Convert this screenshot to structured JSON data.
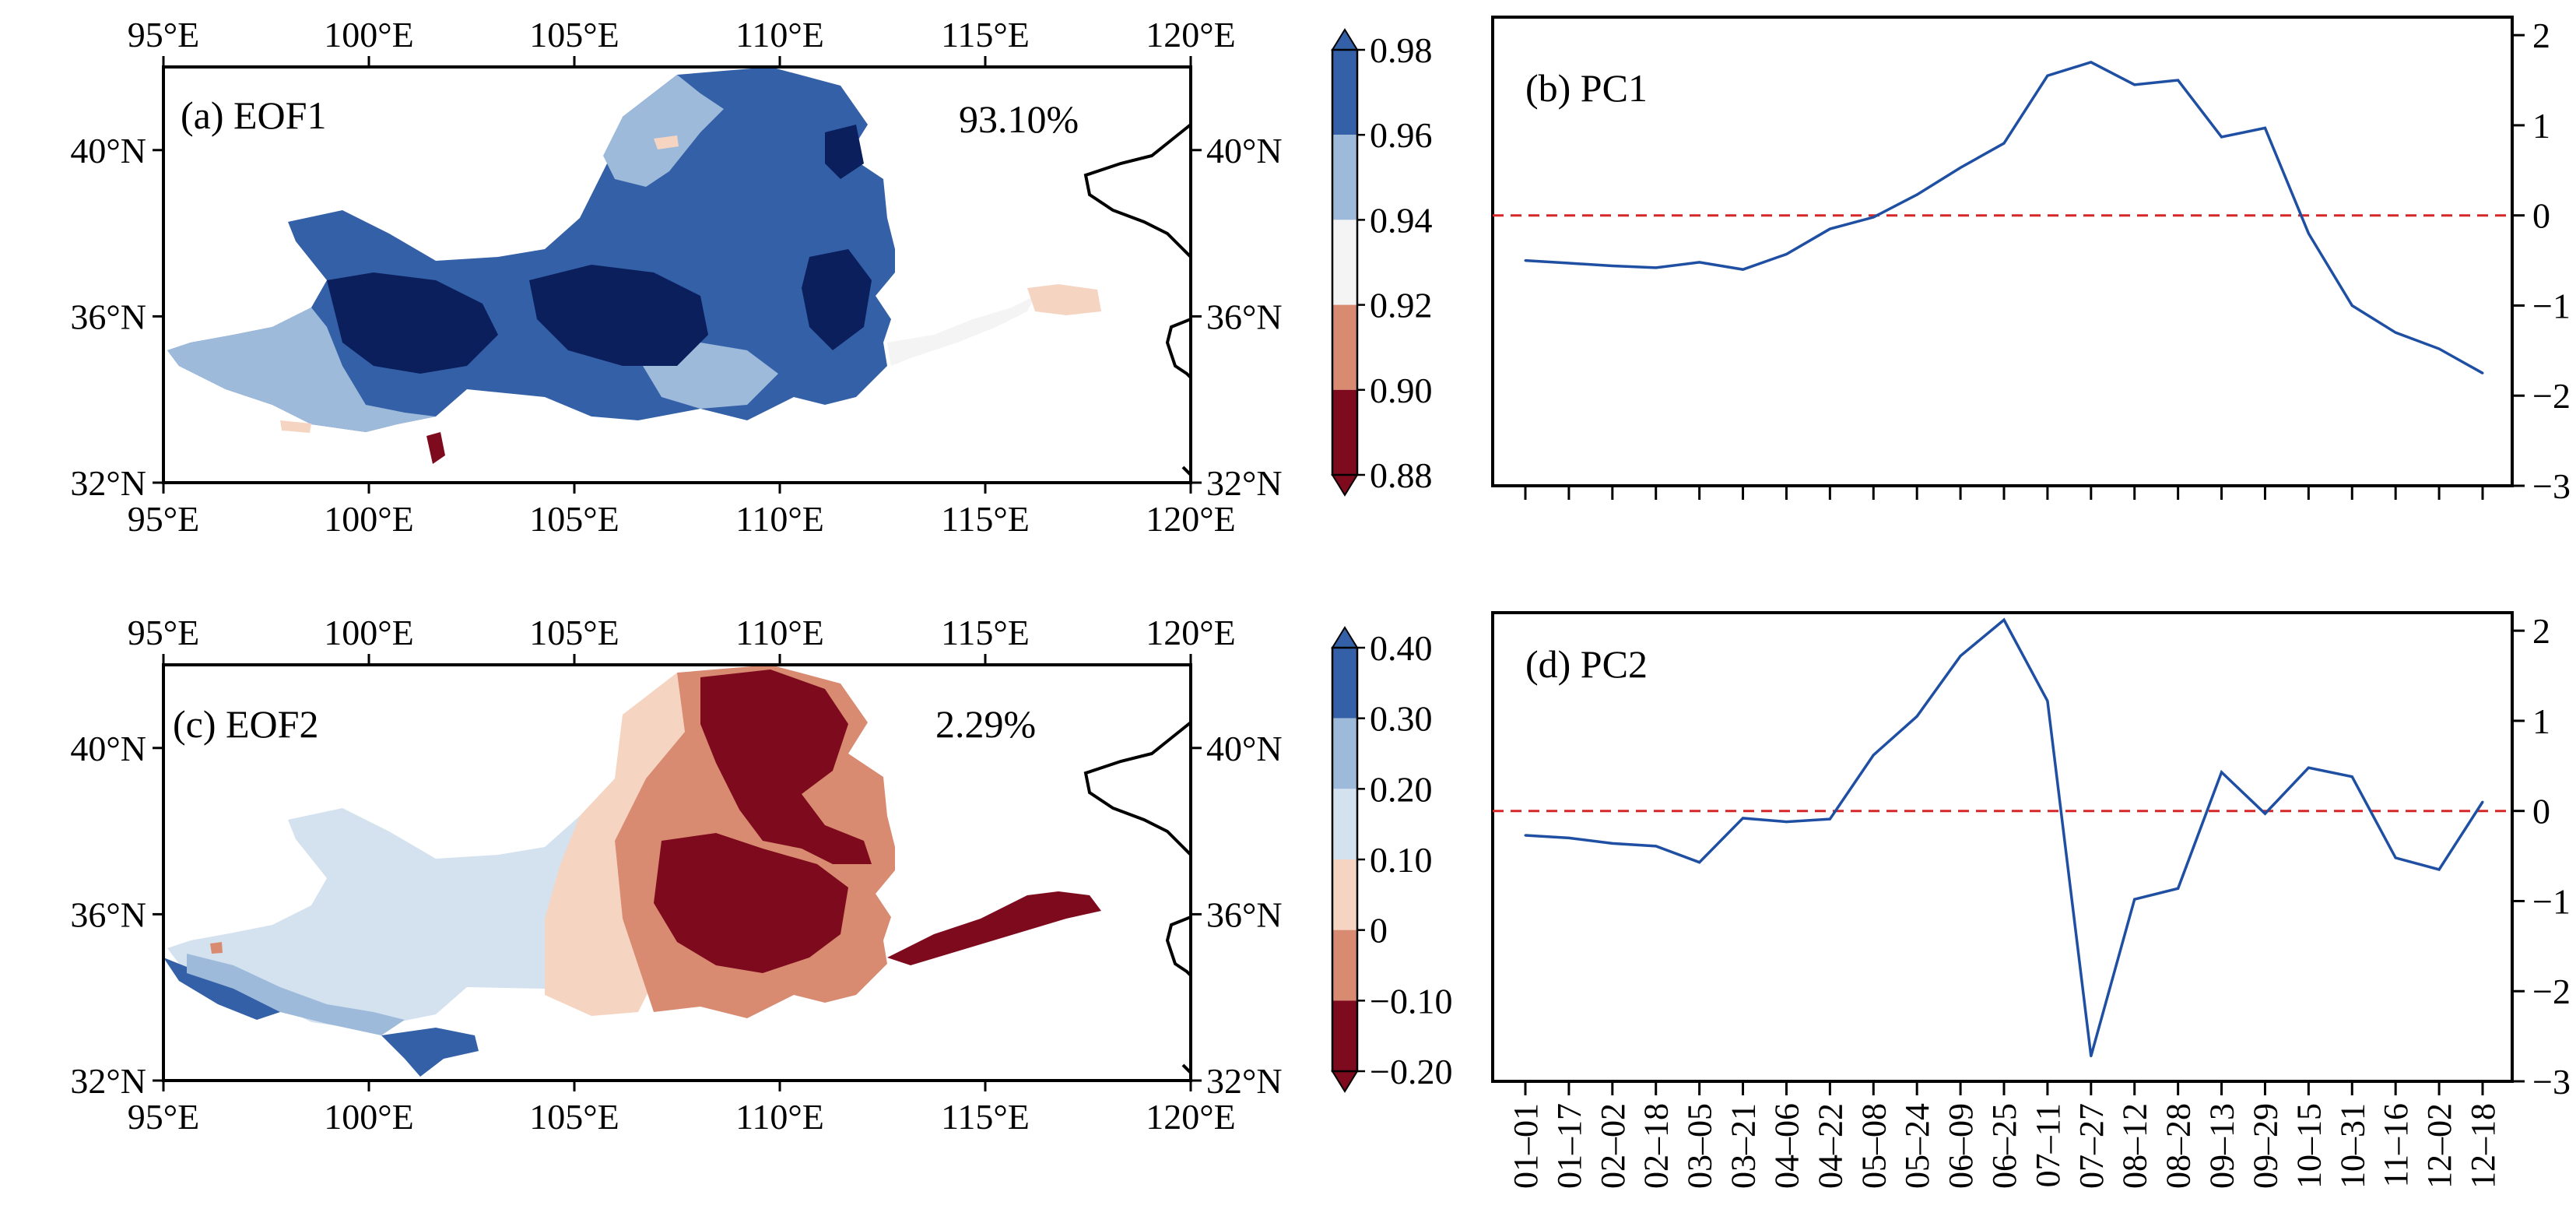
{
  "colors": {
    "blue_dark": "#0a1f5c",
    "blue_mid": "#3460a8",
    "blue_light": "#9dbadb",
    "blue_pale": "#d4e2f0",
    "neutral": "#f4f4f4",
    "salmon_light": "#f6d4c2",
    "salmon": "#d98b72",
    "red_mid": "#c75a48",
    "red_dark": "#7e0a1d",
    "line_pc": "#1f4fa3",
    "zero_line": "#d62728",
    "coast": "#000000"
  },
  "map_axes": {
    "lon_ticks": [
      "95°E",
      "100°E",
      "105°E",
      "110°E",
      "115°E",
      "120°E"
    ],
    "lat_ticks": [
      "40°N",
      "36°N",
      "32°N"
    ]
  },
  "panels": {
    "a": {
      "label": "(a) EOF1",
      "percent": "93.10%"
    },
    "b": {
      "label": "(b) PC1"
    },
    "c": {
      "label": "(c) EOF2",
      "percent": "2.29%"
    },
    "d": {
      "label": "(d) PC2"
    }
  },
  "colorbars": {
    "eof1": {
      "labels": [
        "0.98",
        "0.96",
        "0.94",
        "0.92",
        "0.90",
        "0.88"
      ]
    },
    "eof2": {
      "labels": [
        "0.40",
        "0.30",
        "0.20",
        "0.10",
        "0",
        "−0.10",
        "−0.20"
      ]
    }
  },
  "chart_data": [
    {
      "type": "heatmap",
      "panel": "(a) EOF1",
      "annotation": "93.10%",
      "x_range": [
        95,
        120
      ],
      "y_range": [
        32,
        42
      ],
      "colorbar_levels": [
        0.88,
        0.9,
        0.92,
        0.94,
        0.96,
        0.98
      ]
    },
    {
      "type": "line",
      "panel": "(b) PC1",
      "x": [
        "01–01",
        "01–17",
        "02–02",
        "02–18",
        "03–05",
        "03–21",
        "04–06",
        "04–22",
        "05–08",
        "05–24",
        "06–09",
        "06–25",
        "07–11",
        "07–27",
        "08–12",
        "08–28",
        "09–13",
        "09–29",
        "10–15",
        "10–31",
        "11–16",
        "12–02",
        "12–18"
      ],
      "series": [
        {
          "values": [
            -0.5,
            -0.53,
            -0.56,
            -0.58,
            -0.52,
            -0.6,
            -0.43,
            -0.15,
            -0.02,
            0.23,
            0.53,
            0.8,
            1.55,
            1.7,
            1.45,
            1.5,
            0.87,
            0.97,
            -0.2,
            -1.0,
            -1.3,
            -1.48,
            -1.75
          ]
        }
      ],
      "ylim": [
        -3,
        2.2
      ],
      "yticks": [
        -3,
        -2,
        -1,
        0,
        1,
        2
      ],
      "zero_line": 0
    },
    {
      "type": "heatmap",
      "panel": "(c) EOF2",
      "annotation": "2.29%",
      "x_range": [
        95,
        120
      ],
      "y_range": [
        32,
        42
      ],
      "colorbar_levels": [
        -0.2,
        -0.1,
        0,
        0.1,
        0.2,
        0.3,
        0.4
      ]
    },
    {
      "type": "line",
      "panel": "(d) PC2",
      "x": [
        "01–01",
        "01–17",
        "02–02",
        "02–18",
        "03–05",
        "03–21",
        "04–06",
        "04–22",
        "05–08",
        "05–24",
        "06–09",
        "06–25",
        "07–11",
        "07–27",
        "08–12",
        "08–28",
        "09–13",
        "09–29",
        "10–15",
        "10–31",
        "11–16",
        "12–02",
        "12–18"
      ],
      "series": [
        {
          "values": [
            -0.27,
            -0.3,
            -0.36,
            -0.39,
            -0.57,
            -0.08,
            -0.12,
            -0.09,
            0.62,
            1.05,
            1.72,
            2.12,
            1.22,
            -2.72,
            -0.98,
            -0.86,
            0.43,
            -0.03,
            0.48,
            0.38,
            -0.52,
            -0.65,
            0.1
          ]
        }
      ],
      "ylim": [
        -3,
        2.2
      ],
      "yticks": [
        -3,
        -2,
        -1,
        0,
        1,
        2
      ],
      "zero_line": 0
    }
  ]
}
